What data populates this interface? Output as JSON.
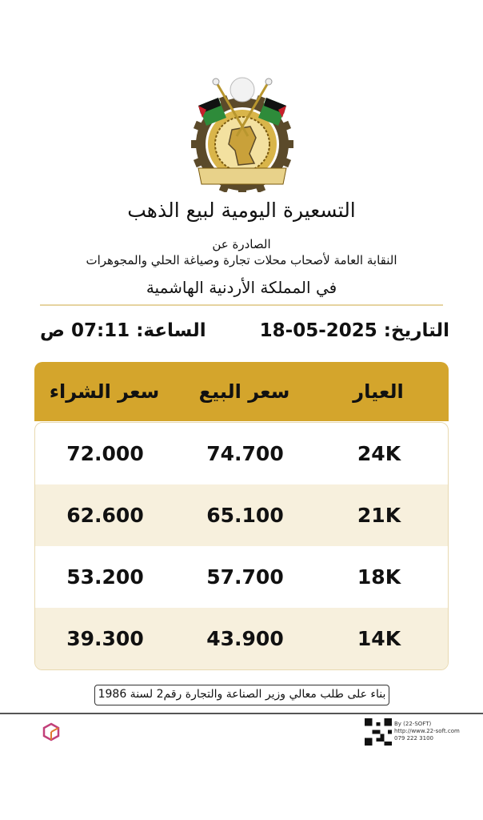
{
  "logo": {
    "name": "syndicate-logo",
    "colors": {
      "gold": "#d9b54a",
      "gear": "#5b4a2a",
      "green": "#2e8b3a",
      "red": "#c8202a"
    }
  },
  "header": {
    "title": "التسعيرة اليومية لبيع الذهب",
    "issued_by": "الصادرة عن",
    "organization": "النقابة العامة لأصحاب محلات تجارة وصياغة الحلي والمجوهرات",
    "country": "في المملكة الأردنية الهاشمية"
  },
  "meta": {
    "date_label": "التاريخ:",
    "date": "18-05-2025",
    "time_label": "الساعة:",
    "time": "07:11 ص"
  },
  "table": {
    "accent_color": "#d4a52c",
    "columns": [
      "العيار",
      "سعر البيع",
      "سعر الشراء"
    ],
    "rows": [
      {
        "karat": "24K",
        "sell": "74.700",
        "buy": "72.000"
      },
      {
        "karat": "21K",
        "sell": "65.100",
        "buy": "62.600"
      },
      {
        "karat": "18K",
        "sell": "57.700",
        "buy": "53.200"
      },
      {
        "karat": "14K",
        "sell": "43.900",
        "buy": "39.300"
      }
    ]
  },
  "footer": {
    "note": "بناء على طلب معالي وزير الصناعة والتجارة رقم2 لسنة 1986",
    "credits": {
      "by": "By (22-SOFT)",
      "url": "http://www.22-soft.com",
      "phone": "079 222 3100"
    },
    "brand_logo_text": "22-soft"
  }
}
